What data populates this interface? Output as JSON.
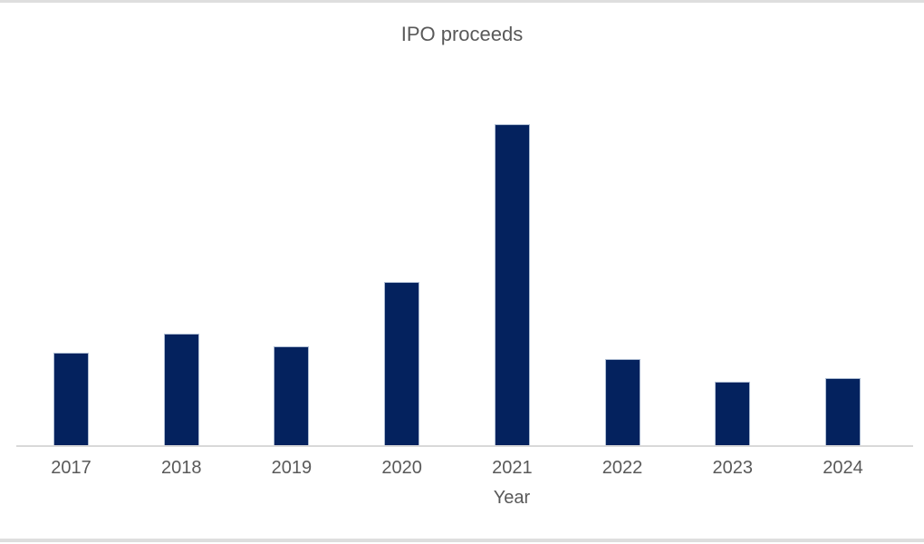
{
  "chart_data": {
    "type": "bar",
    "title": "IPO proceeds",
    "xlabel": "Year",
    "ylabel": "",
    "categories": [
      "2017",
      "2018",
      "2019",
      "2020",
      "2021",
      "2022",
      "2023",
      "2024"
    ],
    "values": [
      29,
      35,
      31,
      51,
      100,
      27,
      20,
      21
    ],
    "value_note": "No value axis, gridlines or data labels are shown; values are relative bar heights indexed to 2021 = 100",
    "ylim": [
      0,
      100
    ],
    "grid": false,
    "legend": null,
    "colors": {
      "bar_fill": "#04225e",
      "bar_border": "#aebdd3",
      "text": "#595959",
      "axis_line": "#d9d9d9",
      "frame_line": "#dedede",
      "background": "#ffffff"
    }
  }
}
